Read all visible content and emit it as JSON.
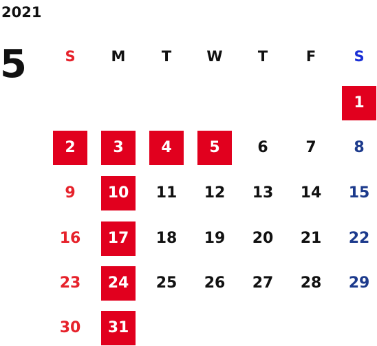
{
  "calendar": {
    "year": "2021",
    "month": "5",
    "weekdays": [
      "S",
      "M",
      "T",
      "W",
      "T",
      "F",
      "S"
    ],
    "weeks": [
      [
        "",
        "",
        "",
        "",
        "",
        "",
        "1"
      ],
      [
        "2",
        "3",
        "4",
        "5",
        "6",
        "7",
        "8"
      ],
      [
        "9",
        "10",
        "11",
        "12",
        "13",
        "14",
        "15"
      ],
      [
        "16",
        "17",
        "18",
        "19",
        "20",
        "21",
        "22"
      ],
      [
        "23",
        "24",
        "25",
        "26",
        "27",
        "28",
        "29"
      ],
      [
        "30",
        "31",
        "",
        "",
        "",
        "",
        ""
      ]
    ],
    "holidays": [
      "1",
      "2",
      "3",
      "4",
      "5",
      "10",
      "17",
      "24",
      "31"
    ]
  },
  "colors": {
    "sunday": "#e6222b",
    "saturday": "#1c3a8c",
    "saturday_header": "#1a2fd6",
    "weekday": "#111111",
    "holiday_bg": "#e1001e",
    "holiday_text": "#ffffff"
  }
}
